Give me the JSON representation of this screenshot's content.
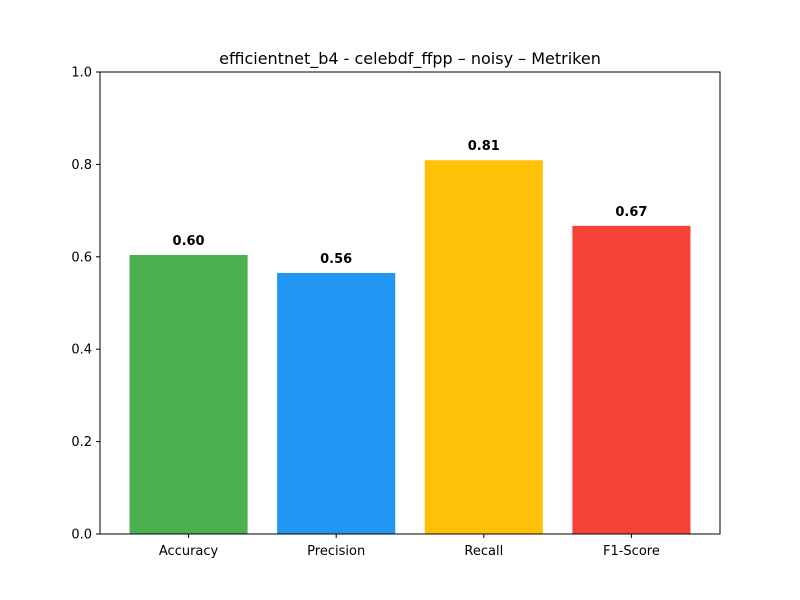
{
  "chart_data": {
    "type": "bar",
    "title": "efficientnet_b4 - celebdf_ffpp – noisy – Metriken",
    "xlabel": "",
    "ylabel": "",
    "categories": [
      "Accuracy",
      "Precision",
      "Recall",
      "F1-Score"
    ],
    "values": [
      0.604,
      0.565,
      0.809,
      0.667
    ],
    "data_labels": [
      "0.60",
      "0.56",
      "0.81",
      "0.67"
    ],
    "colors": [
      "#4caf50",
      "#2196f3",
      "#ffc107",
      "#f44336"
    ],
    "ylim": [
      0,
      1.0
    ],
    "yticks": [
      0.0,
      0.2,
      0.4,
      0.6,
      0.8,
      1.0
    ],
    "ytick_labels": [
      "0.0",
      "0.2",
      "0.4",
      "0.6",
      "0.8",
      "1.0"
    ],
    "grid": false,
    "legend": false
  }
}
